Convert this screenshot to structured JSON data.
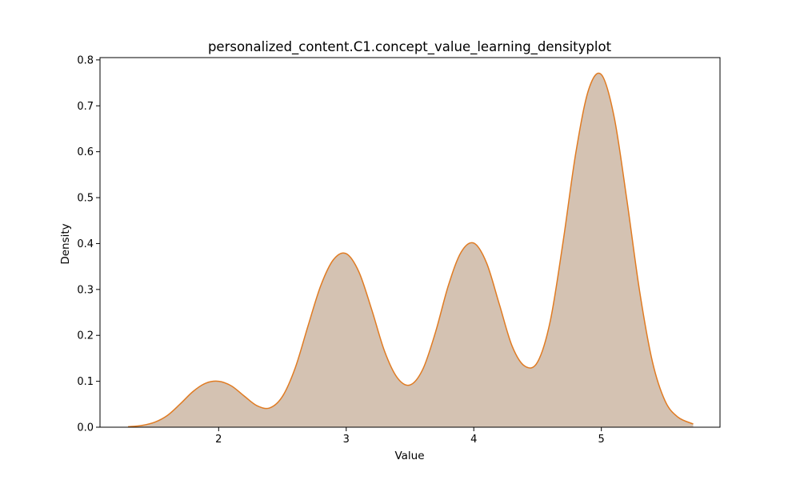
{
  "chart_data": {
    "type": "area",
    "title": "personalized_content.C1.concept_value_learning_densityplot",
    "xlabel": "Value",
    "ylabel": "Density",
    "xlim": [
      1.07,
      5.93
    ],
    "ylim": [
      0,
      0.805
    ],
    "xticks": [
      2,
      3,
      4,
      5
    ],
    "xtick_labels": [
      "2",
      "3",
      "4",
      "5"
    ],
    "yticks": [
      0.0,
      0.1,
      0.2,
      0.3,
      0.4,
      0.5,
      0.6,
      0.7,
      0.8
    ],
    "ytick_labels": [
      "0.0",
      "0.1",
      "0.2",
      "0.3",
      "0.4",
      "0.5",
      "0.6",
      "0.7",
      "0.8"
    ],
    "grid": false,
    "series": [
      {
        "x": [
          1.29,
          1.4,
          1.5,
          1.6,
          1.7,
          1.8,
          1.9,
          2.0,
          2.1,
          2.2,
          2.3,
          2.4,
          2.5,
          2.6,
          2.7,
          2.8,
          2.9,
          3.0,
          3.1,
          3.2,
          3.3,
          3.4,
          3.5,
          3.6,
          3.7,
          3.8,
          3.9,
          4.0,
          4.1,
          4.2,
          4.3,
          4.4,
          4.5,
          4.6,
          4.7,
          4.8,
          4.9,
          5.0,
          5.1,
          5.2,
          5.3,
          5.4,
          5.5,
          5.6,
          5.72
        ],
        "y": [
          0.001,
          0.004,
          0.011,
          0.026,
          0.051,
          0.078,
          0.096,
          0.1,
          0.09,
          0.068,
          0.047,
          0.042,
          0.067,
          0.129,
          0.22,
          0.308,
          0.365,
          0.378,
          0.338,
          0.256,
          0.166,
          0.108,
          0.092,
          0.126,
          0.207,
          0.308,
          0.381,
          0.401,
          0.358,
          0.268,
          0.177,
          0.133,
          0.142,
          0.232,
          0.404,
          0.598,
          0.735,
          0.768,
          0.676,
          0.495,
          0.296,
          0.143,
          0.057,
          0.022,
          0.007
        ]
      }
    ],
    "colors": {
      "fill": "#d4c2b2",
      "line": "#e07b22",
      "axes": "#000000"
    }
  }
}
